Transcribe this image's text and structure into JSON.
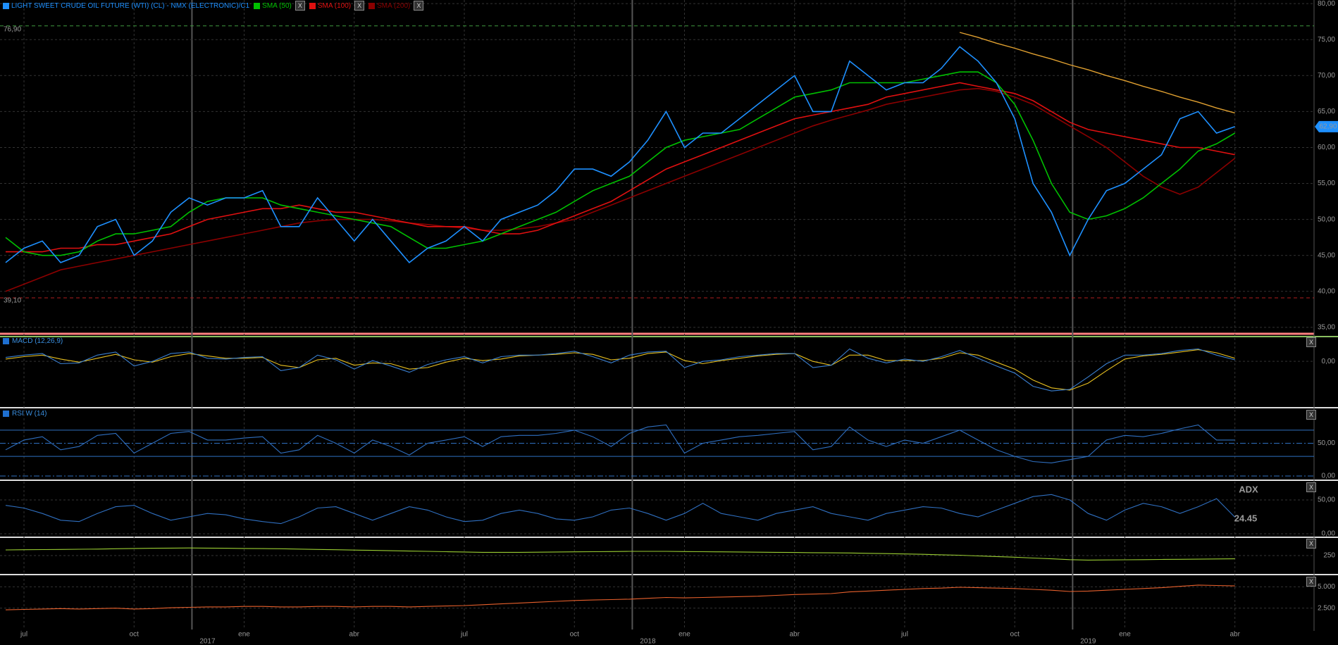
{
  "close_button": "X",
  "chart_data": [
    {
      "type": "line",
      "title": "LIGHT SWEET CRUDE OIL FUTURE (WTI) (CL) - NMX (ELECTRONIC)/C1",
      "categories": [
        null,
        "jul",
        null,
        null,
        null,
        null,
        null,
        "oct",
        null,
        null,
        null,
        null,
        null,
        "ene",
        null,
        null,
        null,
        null,
        null,
        "abr",
        null,
        null,
        null,
        null,
        null,
        "jul",
        null,
        null,
        null,
        null,
        null,
        "oct",
        null,
        null,
        null,
        null,
        null,
        "ene",
        null,
        null,
        null,
        null,
        null,
        "abr",
        null,
        null,
        null,
        null,
        null,
        "jul",
        null,
        null,
        null,
        null,
        null,
        "oct",
        null,
        null,
        null,
        null,
        null,
        "ene",
        null,
        null,
        null,
        null,
        null,
        "abr"
      ],
      "years": [
        null,
        null,
        null,
        null,
        null,
        null,
        null,
        null,
        null,
        null,
        null,
        "2017",
        null,
        null,
        null,
        null,
        null,
        null,
        null,
        null,
        null,
        null,
        null,
        null,
        null,
        null,
        null,
        null,
        null,
        null,
        null,
        null,
        null,
        null,
        null,
        "2018",
        null,
        null,
        null,
        null,
        null,
        null,
        null,
        null,
        null,
        null,
        null,
        null,
        null,
        null,
        null,
        null,
        null,
        null,
        null,
        null,
        null,
        null,
        null,
        "2019",
        null,
        null,
        null,
        null,
        null,
        null,
        null,
        null
      ],
      "series": [
        {
          "name": "LIGHT SWEET CRUDE OIL FUTURE (WTI) (CL) - NMX (ELECTRONIC)/C1",
          "color": "#1e90ff",
          "values": [
            44,
            46,
            47,
            44,
            45,
            49,
            50,
            45,
            47,
            51,
            53,
            52,
            53,
            53,
            54,
            49,
            49,
            53,
            50,
            47,
            50,
            47,
            44,
            46,
            47,
            49,
            47,
            50,
            51,
            52,
            54,
            57,
            57,
            56,
            58,
            61,
            65,
            60,
            62,
            62,
            64,
            66,
            68,
            70,
            65,
            65,
            72,
            70,
            68,
            69,
            69,
            71,
            74,
            72,
            69,
            64,
            55,
            51,
            45,
            50,
            54,
            55,
            57,
            59,
            64,
            65,
            62,
            62.9
          ]
        },
        {
          "name": "SMA (50)",
          "color": "#00c000",
          "values": [
            47.5,
            45.5,
            45,
            45,
            45.5,
            47,
            48,
            48,
            48.5,
            49,
            51,
            52.5,
            53,
            53,
            53,
            52,
            51.5,
            51,
            50.5,
            50,
            49.5,
            49,
            47.5,
            46,
            46,
            46.5,
            47,
            48,
            49,
            50,
            51,
            52.5,
            54,
            55,
            56,
            58,
            60,
            61,
            61.5,
            62,
            62.5,
            64,
            65.5,
            67,
            67.5,
            68,
            69,
            69,
            69,
            69,
            69.5,
            70,
            70.5,
            70.5,
            69,
            66,
            61,
            55,
            51,
            50,
            50.5,
            51.5,
            53,
            55,
            57,
            59.5,
            60.5,
            62
          ]
        },
        {
          "name": "SMA (100)",
          "color": "#e01010",
          "values": [
            45.5,
            45.5,
            45.5,
            46,
            46,
            46.5,
            46.5,
            47,
            47.5,
            48,
            49,
            50,
            50.5,
            51,
            51.5,
            51.5,
            52,
            51.5,
            51,
            51,
            50.5,
            50,
            49.5,
            49,
            49,
            49,
            48.5,
            48,
            48,
            48.5,
            49.5,
            50.5,
            51.5,
            52.5,
            54,
            55.5,
            57,
            58,
            59,
            60,
            61,
            62,
            63,
            64,
            64.5,
            65,
            65.5,
            66,
            67,
            67.5,
            68,
            68.5,
            69,
            68.5,
            68,
            67.5,
            66.5,
            65,
            63.5,
            62.5,
            62,
            61.5,
            61,
            60.5,
            60,
            60,
            59.5,
            59
          ]
        },
        {
          "name": "SMA (200)",
          "color": "#8b0000",
          "values": [
            40,
            41,
            42,
            43,
            43.5,
            44,
            44.5,
            45,
            45.5,
            46,
            46.5,
            47,
            47.5,
            48,
            48.5,
            49,
            49.5,
            49.8,
            50,
            50,
            50,
            49.8,
            49.5,
            49.3,
            49,
            48.8,
            48.5,
            48.5,
            48.7,
            49,
            49.5,
            50,
            51,
            52,
            53,
            54,
            55,
            56,
            57,
            58,
            59,
            60,
            61,
            62,
            63,
            63.8,
            64.5,
            65.2,
            66,
            66.5,
            67,
            67.5,
            68,
            68.2,
            67.8,
            67,
            66,
            64.5,
            63,
            61.5,
            60,
            58,
            56,
            54.5,
            53.5,
            54.5,
            56.5,
            58.5
          ]
        }
      ],
      "trendline": {
        "color": "#e0a030",
        "values": [
          null,
          null,
          null,
          null,
          null,
          null,
          null,
          null,
          null,
          null,
          null,
          null,
          null,
          null,
          null,
          null,
          null,
          null,
          null,
          null,
          null,
          null,
          null,
          null,
          null,
          null,
          null,
          null,
          null,
          null,
          null,
          null,
          null,
          null,
          null,
          null,
          null,
          null,
          null,
          null,
          null,
          null,
          null,
          null,
          null,
          null,
          null,
          null,
          null,
          null,
          null,
          null,
          76,
          75.3,
          74.5,
          73.8,
          73,
          72.3,
          71.5,
          70.8,
          70,
          69.3,
          68.5,
          67.8,
          67,
          66.3,
          65.5,
          64.8
        ]
      },
      "ref_lines": [
        {
          "value": 76.9,
          "label": "76,90",
          "color": "#3f9a3f"
        },
        {
          "value": 39.1,
          "label": "39,10",
          "color": "#b02020"
        }
      ],
      "last_price": {
        "value": 62.9,
        "label": "62,90",
        "color": "#1e90ff"
      },
      "ylim": [
        34.5,
        80.5
      ],
      "yticks": [
        {
          "value": 35,
          "label": "35,00"
        },
        {
          "value": 40,
          "label": "40,00"
        },
        {
          "value": 45,
          "label": "45,00"
        },
        {
          "value": 50,
          "label": "50,00"
        },
        {
          "value": 55,
          "label": "55,00"
        },
        {
          "value": 60,
          "label": "60,00"
        },
        {
          "value": 65,
          "label": "65,00"
        },
        {
          "value": 70,
          "label": "70,00"
        },
        {
          "value": 75,
          "label": "75,00"
        },
        {
          "value": 80,
          "label": "80,00"
        }
      ],
      "grid": true
    },
    {
      "type": "line",
      "title": "MACD (12,26,9)",
      "series": [
        {
          "color": "#3a7fd0",
          "values": [
            0.5,
            0.8,
            1,
            -0.3,
            -0.2,
            0.8,
            1.2,
            -0.6,
            0,
            1,
            1.2,
            0.4,
            0.3,
            0.5,
            0.6,
            -1.2,
            -0.8,
            0.8,
            0.2,
            -1,
            0.1,
            -0.6,
            -1.4,
            -0.4,
            0.2,
            0.6,
            -0.2,
            0.6,
            0.8,
            0.8,
            1,
            1.3,
            0.6,
            -0.2,
            0.8,
            1.2,
            1.3,
            -0.8,
            0,
            0.2,
            0.6,
            0.8,
            1,
            1,
            -0.8,
            -0.5,
            1.6,
            0.4,
            -0.2,
            0.3,
            0,
            0.6,
            1.4,
            0.4,
            -0.6,
            -1.5,
            -3.2,
            -3.8,
            -3.6,
            -2,
            -0.3,
            0.8,
            0.8,
            1,
            1.4,
            1.6,
            0.8,
            0.2
          ]
        },
        {
          "color": "#e8c020",
          "values": [
            0.3,
            0.6,
            0.8,
            0.3,
            -0.1,
            0.4,
            0.9,
            0.2,
            -0.1,
            0.6,
            1,
            0.7,
            0.4,
            0.4,
            0.5,
            -0.5,
            -0.8,
            0.2,
            0.4,
            -0.5,
            -0.2,
            -0.3,
            -1,
            -0.8,
            -0.1,
            0.4,
            0.1,
            0.3,
            0.7,
            0.8,
            0.9,
            1.1,
            0.9,
            0.2,
            0.4,
            1,
            1.2,
            0.1,
            -0.3,
            0.1,
            0.4,
            0.7,
            0.9,
            1,
            0,
            -0.5,
            0.8,
            0.8,
            0.1,
            0.1,
            0.1,
            0.4,
            1.1,
            0.8,
            -0.1,
            -1,
            -2.4,
            -3.4,
            -3.7,
            -2.8,
            -1.2,
            0.3,
            0.7,
            0.9,
            1.2,
            1.5,
            1.1,
            0.4
          ]
        }
      ],
      "ylim": [
        -5.5,
        3
      ],
      "yticks": [
        {
          "value": 0,
          "label": "0,00"
        }
      ],
      "grid": true
    },
    {
      "type": "line",
      "title": "RSI W (14)",
      "series": [
        {
          "color": "#2f6fc0",
          "values": [
            40,
            55,
            60,
            40,
            45,
            62,
            65,
            35,
            50,
            65,
            68,
            55,
            55,
            58,
            60,
            35,
            40,
            62,
            50,
            35,
            55,
            45,
            32,
            50,
            55,
            60,
            45,
            60,
            62,
            62,
            65,
            70,
            60,
            45,
            65,
            75,
            78,
            35,
            50,
            55,
            60,
            62,
            65,
            68,
            40,
            45,
            75,
            55,
            45,
            55,
            50,
            60,
            70,
            55,
            40,
            30,
            22,
            20,
            25,
            30,
            55,
            62,
            60,
            65,
            72,
            78,
            55,
            55
          ]
        }
      ],
      "levels": [
        70,
        30
      ],
      "ylim": [
        0,
        100
      ],
      "yticks": [
        {
          "value": 50,
          "label": "50,00"
        },
        {
          "value": 0,
          "label": "0,00"
        }
      ],
      "grid": true
    },
    {
      "type": "line",
      "title": "ADX",
      "series": [
        {
          "color": "#2f6fc0",
          "values": [
            42,
            38,
            30,
            20,
            18,
            30,
            40,
            42,
            30,
            20,
            25,
            30,
            28,
            22,
            18,
            15,
            25,
            38,
            40,
            30,
            20,
            30,
            40,
            35,
            25,
            18,
            20,
            30,
            35,
            30,
            22,
            20,
            25,
            35,
            38,
            30,
            20,
            30,
            45,
            30,
            25,
            20,
            30,
            35,
            40,
            30,
            25,
            20,
            30,
            35,
            40,
            38,
            30,
            25,
            35,
            45,
            55,
            58,
            50,
            30,
            20,
            35,
            45,
            40,
            30,
            40,
            52,
            24.45
          ]
        }
      ],
      "ylim": [
        0,
        75
      ],
      "yticks": [
        {
          "value": 50,
          "label": "50,00"
        },
        {
          "value": 0,
          "label": "0,00"
        }
      ],
      "grid": true
    },
    {
      "type": "line",
      "series": [
        {
          "color": "#9acd32",
          "values": [
            285,
            286,
            287,
            288,
            289,
            290,
            292,
            294,
            295,
            296,
            297,
            296,
            295,
            294,
            293,
            292,
            290,
            288,
            286,
            284,
            282,
            280,
            278,
            276,
            274,
            272,
            270,
            270,
            270,
            271,
            272,
            273,
            274,
            275,
            276,
            276,
            276,
            275,
            274,
            273,
            272,
            271,
            270,
            269,
            268,
            267,
            266,
            264,
            262,
            260,
            258,
            255,
            252,
            248,
            244,
            240,
            235,
            230,
            225,
            222,
            223,
            224,
            225,
            226,
            227,
            228,
            229,
            230
          ]
        }
      ],
      "ylim": [
        150,
        350
      ],
      "yticks": [
        250
      ],
      "grid": true
    },
    {
      "type": "line",
      "series": [
        {
          "color": "#e8602c",
          "values": [
            2300,
            2350,
            2400,
            2450,
            2400,
            2450,
            2500,
            2400,
            2450,
            2550,
            2600,
            2650,
            2650,
            2700,
            2700,
            2650,
            2650,
            2700,
            2700,
            2650,
            2700,
            2700,
            2650,
            2700,
            2750,
            2800,
            2900,
            3000,
            3100,
            3200,
            3300,
            3400,
            3450,
            3500,
            3550,
            3650,
            3750,
            3700,
            3750,
            3800,
            3850,
            3900,
            4000,
            4100,
            4150,
            4200,
            4400,
            4500,
            4600,
            4700,
            4800,
            4850,
            4950,
            4900,
            4850,
            4800,
            4700,
            4600,
            4450,
            4500,
            4600,
            4700,
            4800,
            4900,
            5050,
            5200,
            5150,
            5100
          ]
        }
      ],
      "ylim": [
        0,
        6100
      ],
      "yticks": [
        {
          "value": 5000,
          "label": "5.000"
        },
        {
          "value": 2500,
          "label": "2.500"
        }
      ],
      "grid": true
    }
  ]
}
